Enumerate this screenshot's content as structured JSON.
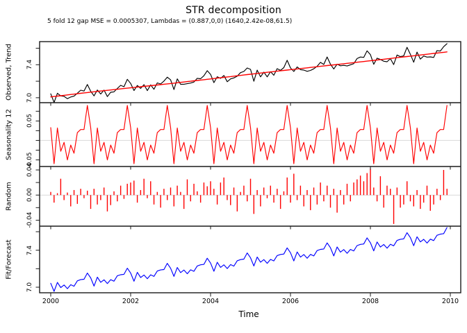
{
  "chart_data": {
    "type": "line",
    "title": "STR decomposition",
    "subtitle": "5 fold 12 gap MSE = 0.0005307, Lambdas = (0.887,0,0) (1640,2.42e-08,61.5)",
    "xlabel": "Time",
    "x_start_year": 2000,
    "n_months": 120,
    "x_ticks": [
      2000,
      2002,
      2004,
      2006,
      2008,
      2010
    ],
    "x_tick_labels": [
      "2000",
      "2002",
      "2004",
      "2006",
      "2008",
      "2010"
    ],
    "xlim": [
      1999.72,
      2010.26
    ],
    "grid": false,
    "legend": "none",
    "colors": {
      "observed": "#000000",
      "trend": "#ff0000",
      "seasonal": "#ff0000",
      "random": "#ff0000",
      "fit": "#0000ff",
      "zero_line": "#d9d9d9",
      "frame": "#1a1a1a"
    },
    "panels": [
      {
        "label": "Observed, Trend",
        "ylim": [
          6.94,
          7.68
        ],
        "ticks": [
          7.0,
          7.2,
          7.4,
          7.6
        ],
        "labeled": [
          {
            "v": 7.0,
            "text": "7.0"
          },
          {
            "v": 7.4,
            "text": "7.4"
          }
        ],
        "series": [
          "observed",
          "trend"
        ],
        "zero_line": false
      },
      {
        "label": "Seasonality 12",
        "ylim": [
          -0.067,
          0.097
        ],
        "ticks": [
          -0.05,
          -0.025,
          0,
          0.025,
          0.05,
          0.075
        ],
        "labeled": [
          {
            "v": 0.05,
            "text": "0.05"
          },
          {
            "v": -0.05,
            "text": "-0.05"
          }
        ],
        "series": [
          "seasonal"
        ],
        "zero_line": true
      },
      {
        "label": "Random",
        "ylim": [
          -0.0495,
          0.0455
        ],
        "ticks": [
          -0.04,
          -0.02,
          0,
          0.02,
          0.04
        ],
        "labeled": [
          {
            "v": 0.04,
            "text": "0.04"
          },
          {
            "v": 0.0,
            "text": "0.00"
          },
          {
            "v": -0.04,
            "text": "-0.04"
          }
        ],
        "series": [
          "random"
        ],
        "zero_line": true
      },
      {
        "label": "Fit/Forecast",
        "ylim": [
          6.94,
          7.66
        ],
        "ticks": [
          7.0,
          7.2,
          7.4,
          7.6
        ],
        "labeled": [
          {
            "v": 7.0,
            "text": "7.0"
          },
          {
            "v": 7.4,
            "text": "7.4"
          }
        ],
        "series": [
          "fit"
        ],
        "zero_line": false
      }
    ],
    "decomposition": {
      "note": "observed = trend + seasonal + random; fit = trend + seasonal",
      "trend_knots_yearly": [
        7.01,
        7.068,
        7.12,
        7.172,
        7.228,
        7.285,
        7.34,
        7.394,
        7.448,
        7.504,
        7.56
      ],
      "seasonal_pattern_12": [
        0.033,
        -0.06,
        0.032,
        -0.028,
        -0.005,
        -0.05,
        -0.012,
        -0.033,
        0.02,
        0.028,
        0.028,
        0.09
      ],
      "random": [
        0.005,
        -0.012,
        0.003,
        0.026,
        -0.008,
        0.004,
        -0.018,
        0.008,
        -0.014,
        0.01,
        -0.005,
        0.007,
        -0.022,
        0.01,
        -0.015,
        -0.008,
        0.012,
        -0.026,
        -0.016,
        0.006,
        -0.01,
        0.015,
        -0.006,
        0.018,
        0.02,
        0.023,
        -0.012,
        0.008,
        0.026,
        -0.005,
        0.022,
        -0.015,
        0.005,
        -0.02,
        0.01,
        -0.008,
        0.012,
        -0.018,
        0.015,
        0.005,
        -0.022,
        0.025,
        -0.01,
        0.018,
        0.006,
        -0.012,
        0.02,
        0.014,
        0.022,
        0.01,
        -0.015,
        0.02,
        0.028,
        -0.008,
        -0.016,
        0.012,
        -0.026,
        0.005,
        0.015,
        -0.01,
        0.026,
        -0.03,
        0.008,
        -0.018,
        0.012,
        -0.005,
        0.015,
        -0.012,
        0.01,
        -0.022,
        0.006,
        0.028,
        -0.012,
        0.034,
        -0.008,
        0.015,
        -0.018,
        0.008,
        -0.024,
        0.012,
        -0.015,
        0.02,
        -0.01,
        0.015,
        -0.02,
        0.01,
        -0.028,
        0.008,
        -0.015,
        0.018,
        -0.01,
        0.02,
        0.025,
        0.031,
        0.022,
        0.035,
        0.042,
        0.012,
        -0.01,
        0.03,
        -0.02,
        0.015,
        0.01,
        -0.046,
        0.012,
        -0.02,
        -0.015,
        0.022,
        -0.01,
        -0.018,
        0.008,
        -0.022,
        -0.012,
        0.015,
        -0.025,
        -0.015,
        0.01,
        -0.008,
        0.04,
        0.01
      ]
    }
  }
}
